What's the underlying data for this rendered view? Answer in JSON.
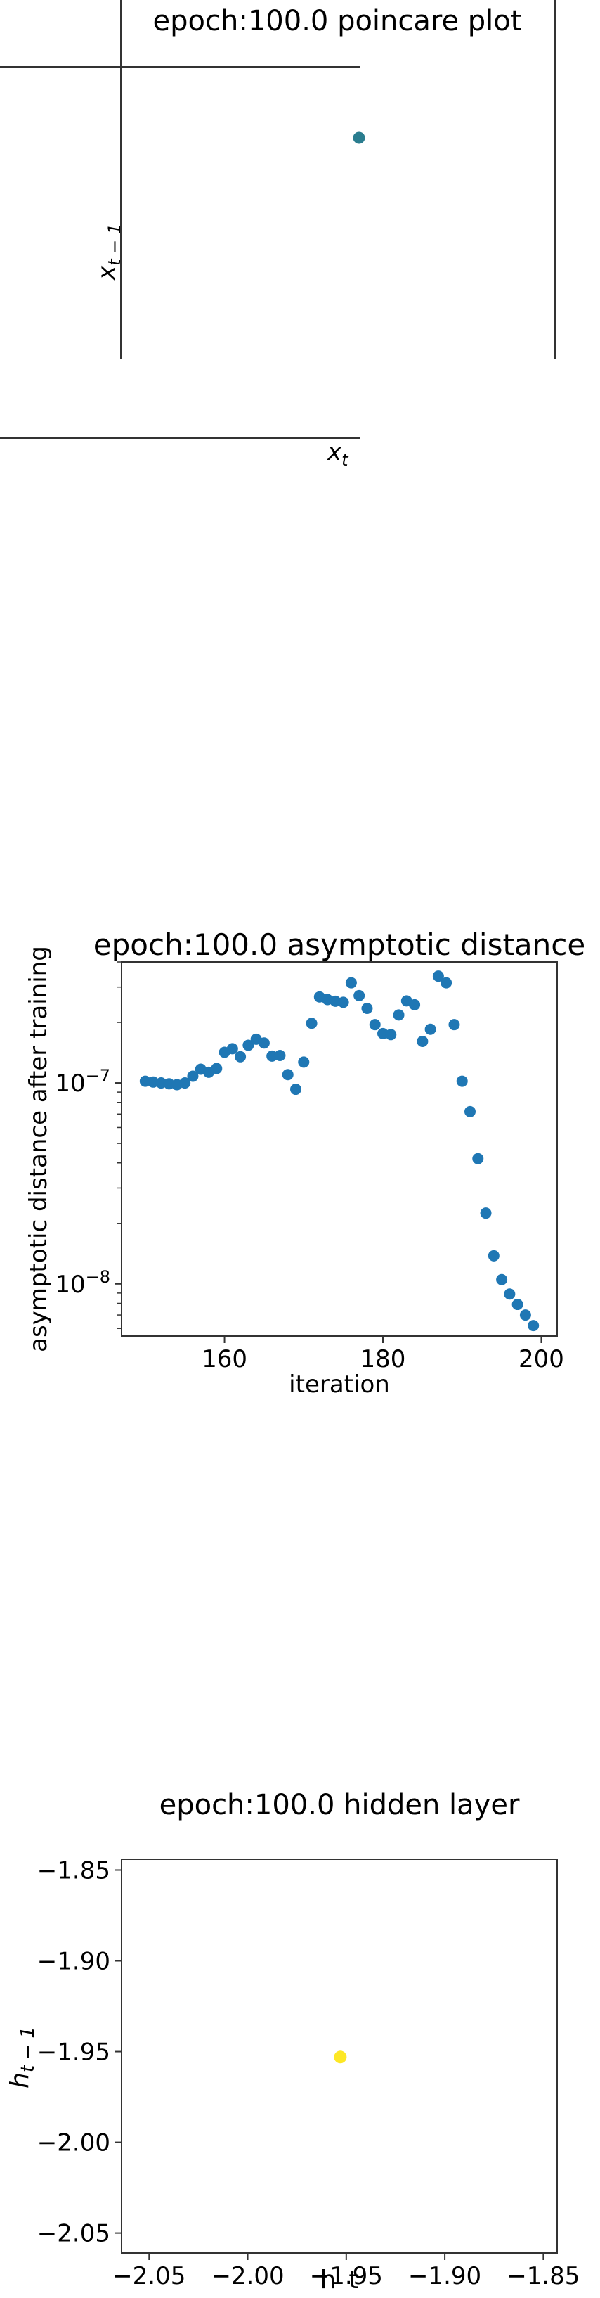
{
  "chart_data": [
    {
      "type": "scatter",
      "title": "epoch:100.0 poincare plot",
      "xlabel": "x_t",
      "ylabel": "x_{t-1}",
      "points": [
        {
          "x": 1,
          "y": 1
        }
      ],
      "marker_color": "#2a7d8f",
      "grid": false
    },
    {
      "type": "scatter",
      "title": "epoch:100.0 asymptotic distance",
      "xlabel": "iteration",
      "ylabel": "asymptotic distance after training",
      "yscale": "log",
      "xlim": [
        147,
        202
      ],
      "ylim": [
        5.5e-09,
        4e-07
      ],
      "xticks": [
        160,
        180,
        200
      ],
      "ytick_labels": [
        {
          "value": 1e-07,
          "base": "10",
          "exp": "−7"
        },
        {
          "value": 1e-08,
          "base": "10",
          "exp": "−8"
        }
      ],
      "marker_color": "#1f77b4",
      "x": [
        150,
        151,
        152,
        153,
        154,
        155,
        156,
        157,
        158,
        159,
        160,
        161,
        162,
        163,
        164,
        165,
        166,
        167,
        168,
        169,
        170,
        171,
        172,
        173,
        174,
        175,
        176,
        177,
        178,
        179,
        180,
        181,
        182,
        183,
        184,
        185,
        186,
        187,
        188,
        189,
        190,
        191,
        192,
        193,
        194,
        195,
        196,
        197,
        198,
        199
      ],
      "y": [
        1.02e-07,
        1.01e-07,
        1e-07,
        9.9e-08,
        9.8e-08,
        1e-07,
        1.08e-07,
        1.17e-07,
        1.13e-07,
        1.18e-07,
        1.42e-07,
        1.48e-07,
        1.35e-07,
        1.54e-07,
        1.65e-07,
        1.58e-07,
        1.36e-07,
        1.37e-07,
        1.1e-07,
        9.3e-08,
        1.27e-07,
        1.98e-07,
        2.68e-07,
        2.6e-07,
        2.55e-07,
        2.52e-07,
        3.15e-07,
        2.72e-07,
        2.35e-07,
        1.95e-07,
        1.76e-07,
        1.74e-07,
        2.18e-07,
        2.56e-07,
        2.45e-07,
        1.61e-07,
        1.85e-07,
        3.4e-07,
        3.15e-07,
        1.95e-07,
        1.02e-07,
        7.2e-08,
        4.2e-08,
        2.25e-08,
        1.38e-08,
        1.05e-08,
        8.9e-09,
        7.9e-09,
        7e-09,
        6.2e-09
      ],
      "grid": false
    },
    {
      "type": "scatter",
      "title": "epoch:100.0 hidden layer",
      "xlabel": "h_t",
      "ylabel": "h_{t-1}",
      "xlim": [
        -2.064,
        -1.843
      ],
      "ylim": [
        -2.061,
        -1.844
      ],
      "xticks": [
        "−2.05",
        "−2.00",
        "−1.95",
        "−1.90",
        "−1.85"
      ],
      "yticks": [
        "−1.85",
        "−1.90",
        "−1.95",
        "−2.00",
        "−2.05"
      ],
      "points": [
        {
          "x": -1.953,
          "y": -1.953
        }
      ],
      "marker_color": "#fde725",
      "grid": false
    }
  ]
}
